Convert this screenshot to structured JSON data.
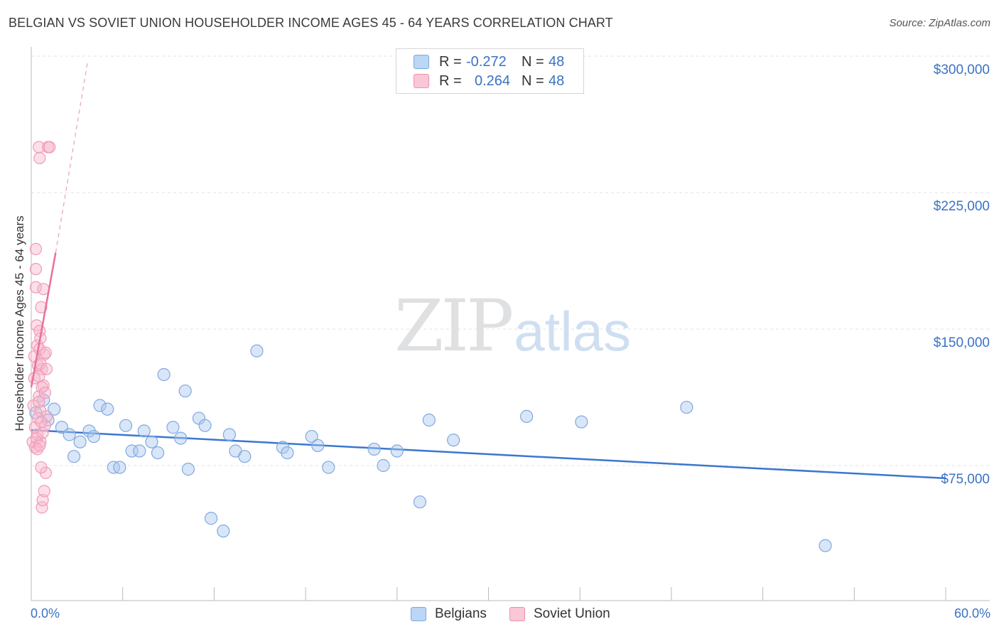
{
  "title": "BELGIAN VS SOVIET UNION HOUSEHOLDER INCOME AGES 45 - 64 YEARS CORRELATION CHART",
  "source": "Source: ZipAtlas.com",
  "watermark": {
    "zip": "ZIP",
    "atlas": "atlas"
  },
  "legend": {
    "r_label": "R =",
    "n_label": "N =",
    "rows": [
      {
        "name": "Belgians",
        "r": "-0.272",
        "n": "48",
        "fill": "#bcd6f5",
        "stroke": "#7aa8e0"
      },
      {
        "name": "Soviet Union",
        "r": "0.264",
        "n": "48",
        "fill": "#fac7d6",
        "stroke": "#ec8fae"
      }
    ]
  },
  "chart_data": {
    "type": "scatter",
    "title": "BELGIAN VS SOVIET UNION HOUSEHOLDER INCOME AGES 45 - 64 YEARS CORRELATION CHART",
    "xlabel": "",
    "ylabel": "Householder Income Ages 45 - 64 years",
    "xlim": [
      0,
      60
    ],
    "ylim": [
      0,
      315000
    ],
    "x_tick_labels": [
      "0.0%",
      "60.0%"
    ],
    "y_ticks": [
      {
        "value": 75000,
        "label": "$75,000"
      },
      {
        "value": 150000,
        "label": "$150,000"
      },
      {
        "value": 225000,
        "label": "$225,000"
      },
      {
        "value": 300000,
        "label": "$300,000"
      }
    ],
    "series": [
      {
        "name": "Belgians",
        "color": "#3a77d0",
        "points": [
          [
            0.3,
            104000
          ],
          [
            0.8,
            111000
          ],
          [
            1.1,
            100000
          ],
          [
            1.5,
            106000
          ],
          [
            2.0,
            96000
          ],
          [
            2.5,
            92000
          ],
          [
            2.8,
            80000
          ],
          [
            3.2,
            88000
          ],
          [
            3.8,
            94000
          ],
          [
            4.1,
            91000
          ],
          [
            4.5,
            108000
          ],
          [
            5.0,
            106000
          ],
          [
            5.4,
            74000
          ],
          [
            5.8,
            74000
          ],
          [
            6.2,
            97000
          ],
          [
            6.6,
            83000
          ],
          [
            7.1,
            83000
          ],
          [
            7.4,
            94000
          ],
          [
            7.9,
            88000
          ],
          [
            8.3,
            82000
          ],
          [
            8.7,
            125000
          ],
          [
            9.3,
            96000
          ],
          [
            9.8,
            90000
          ],
          [
            10.1,
            116000
          ],
          [
            10.3,
            73000
          ],
          [
            11.0,
            101000
          ],
          [
            11.4,
            97000
          ],
          [
            11.8,
            46000
          ],
          [
            12.6,
            39000
          ],
          [
            13.0,
            92000
          ],
          [
            13.4,
            83000
          ],
          [
            14.0,
            80000
          ],
          [
            14.8,
            138000
          ],
          [
            16.5,
            85000
          ],
          [
            16.8,
            82000
          ],
          [
            18.4,
            91000
          ],
          [
            18.8,
            86000
          ],
          [
            19.5,
            74000
          ],
          [
            22.5,
            84000
          ],
          [
            23.1,
            75000
          ],
          [
            24.0,
            83000
          ],
          [
            25.5,
            55000
          ],
          [
            26.1,
            100000
          ],
          [
            27.7,
            89000
          ],
          [
            32.5,
            102000
          ],
          [
            36.1,
            99000
          ],
          [
            43.0,
            107000
          ],
          [
            52.1,
            31000
          ]
        ],
        "trend": {
          "x": [
            0,
            60
          ],
          "y": [
            94500,
            68000
          ]
        }
      },
      {
        "name": "Soviet Union",
        "color": "#e8719a",
        "points": [
          [
            0.1,
            88000
          ],
          [
            0.15,
            108000
          ],
          [
            0.2,
            123000
          ],
          [
            0.2,
            135000
          ],
          [
            0.25,
            96000
          ],
          [
            0.25,
            85000
          ],
          [
            0.3,
            194000
          ],
          [
            0.3,
            173000
          ],
          [
            0.3,
            183000
          ],
          [
            0.35,
            152000
          ],
          [
            0.4,
            141000
          ],
          [
            0.4,
            92000
          ],
          [
            0.45,
            130000
          ],
          [
            0.5,
            113000
          ],
          [
            0.5,
            250000
          ],
          [
            0.55,
            244000
          ],
          [
            0.55,
            149000
          ],
          [
            0.6,
            105000
          ],
          [
            0.6,
            88000
          ],
          [
            0.65,
            162000
          ],
          [
            0.7,
            128000
          ],
          [
            0.7,
            52000
          ],
          [
            0.75,
            56000
          ],
          [
            0.8,
            119000
          ],
          [
            0.85,
            136000
          ],
          [
            0.9,
            97000
          ],
          [
            0.95,
            71000
          ],
          [
            1.0,
            102000
          ],
          [
            0.35,
            90000
          ],
          [
            0.4,
            84000
          ],
          [
            0.5,
            110000
          ],
          [
            0.55,
            139000
          ],
          [
            0.6,
            131000
          ],
          [
            0.65,
            74000
          ],
          [
            0.7,
            118000
          ],
          [
            0.75,
            93000
          ],
          [
            0.8,
            172000
          ],
          [
            0.85,
            61000
          ],
          [
            0.9,
            115000
          ],
          [
            0.95,
            137000
          ],
          [
            1.0,
            128000
          ],
          [
            1.1,
            250000
          ],
          [
            1.2,
            250000
          ],
          [
            0.45,
            101000
          ],
          [
            0.5,
            124000
          ],
          [
            0.55,
            86000
          ],
          [
            0.6,
            145000
          ],
          [
            0.65,
            99000
          ]
        ],
        "trend": {
          "x": [
            0,
            1.6
          ],
          "y": [
            118000,
            192000
          ]
        },
        "trend_extension": {
          "x": [
            1.6,
            3.7
          ],
          "y": [
            192000,
            297000
          ]
        }
      }
    ]
  }
}
